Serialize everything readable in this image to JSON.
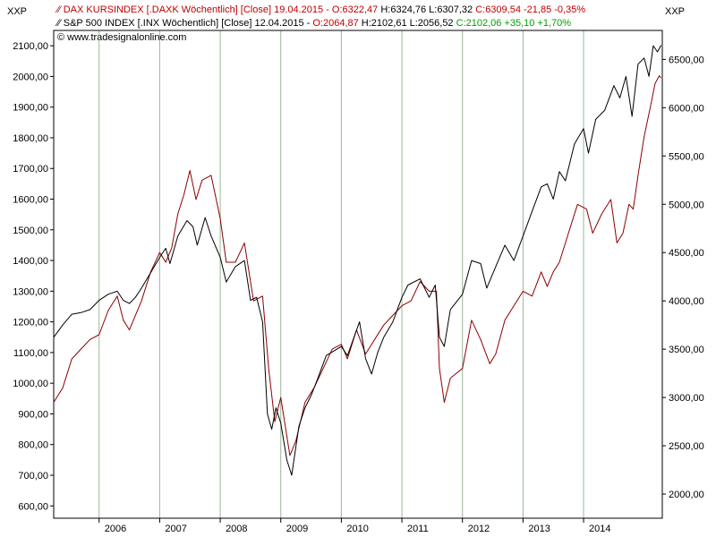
{
  "chart_data": {
    "type": "line",
    "corner_labels": {
      "left": "XXP",
      "right": "XXP"
    },
    "legend": {
      "dax": {
        "name": "DAX KURSINDEX [.DAXK  Wöchentlich] [Close] 19.04.2015",
        "open": "O:6322,47",
        "hl": "H:6324,76 L:6307,32",
        "close": "C:6309,54 -21,85 -0,35%"
      },
      "sp": {
        "name": "S&P 500 INDEX [.INX  Wöchentlich] [Close] 12.04.2015",
        "open": "O:2064,87",
        "hl": "H:2102,61 L:2056,52",
        "close": "C:2102,06 +35,10 +1,70%"
      },
      "copyright": "© www.tradesignalonline.com"
    },
    "x_axis": {
      "ticks": [
        "2006",
        "2007",
        "2008",
        "2009",
        "2010",
        "2011",
        "2012",
        "2013",
        "2014"
      ],
      "range": [
        2005.25,
        2015.3
      ]
    },
    "left_axis": {
      "series": "S&P 500",
      "range": [
        560,
        2150
      ],
      "ticks": [
        "600,00",
        "700,00",
        "800,00",
        "900,00",
        "1000,00",
        "1100,00",
        "1200,00",
        "1300,00",
        "1400,00",
        "1500,00",
        "1600,00",
        "1700,00",
        "1800,00",
        "1900,00",
        "2000,00",
        "2100,00"
      ]
    },
    "right_axis": {
      "series": "DAX",
      "range": [
        1750,
        6800
      ],
      "ticks": [
        "2000,00",
        "2500,00",
        "3000,00",
        "3500,00",
        "4000,00",
        "4500,00",
        "5000,00",
        "5500,00",
        "6000,00",
        "6500,00"
      ]
    },
    "grid": "vertical lines at year ticks",
    "series": [
      {
        "name": "S&P 500 INDEX",
        "color": "#000000",
        "axis": "left",
        "points": [
          [
            2005.25,
            1150
          ],
          [
            2005.4,
            1190
          ],
          [
            2005.55,
            1225
          ],
          [
            2005.7,
            1230
          ],
          [
            2005.85,
            1240
          ],
          [
            2006.0,
            1270
          ],
          [
            2006.15,
            1290
          ],
          [
            2006.3,
            1300
          ],
          [
            2006.4,
            1270
          ],
          [
            2006.5,
            1260
          ],
          [
            2006.6,
            1280
          ],
          [
            2006.7,
            1310
          ],
          [
            2006.85,
            1360
          ],
          [
            2007.0,
            1410
          ],
          [
            2007.1,
            1440
          ],
          [
            2007.17,
            1390
          ],
          [
            2007.3,
            1480
          ],
          [
            2007.45,
            1530
          ],
          [
            2007.55,
            1510
          ],
          [
            2007.62,
            1450
          ],
          [
            2007.75,
            1540
          ],
          [
            2007.85,
            1480
          ],
          [
            2008.0,
            1410
          ],
          [
            2008.1,
            1330
          ],
          [
            2008.25,
            1380
          ],
          [
            2008.4,
            1400
          ],
          [
            2008.5,
            1270
          ],
          [
            2008.6,
            1280
          ],
          [
            2008.7,
            1200
          ],
          [
            2008.78,
            900
          ],
          [
            2008.85,
            850
          ],
          [
            2008.92,
            920
          ],
          [
            2009.0,
            870
          ],
          [
            2009.1,
            750
          ],
          [
            2009.18,
            700
          ],
          [
            2009.3,
            860
          ],
          [
            2009.4,
            920
          ],
          [
            2009.5,
            960
          ],
          [
            2009.6,
            1010
          ],
          [
            2009.75,
            1090
          ],
          [
            2010.0,
            1120
          ],
          [
            2010.1,
            1090
          ],
          [
            2010.3,
            1200
          ],
          [
            2010.4,
            1080
          ],
          [
            2010.5,
            1030
          ],
          [
            2010.6,
            1100
          ],
          [
            2010.7,
            1150
          ],
          [
            2010.85,
            1200
          ],
          [
            2011.0,
            1280
          ],
          [
            2011.1,
            1320
          ],
          [
            2011.3,
            1340
          ],
          [
            2011.45,
            1280
          ],
          [
            2011.55,
            1320
          ],
          [
            2011.62,
            1150
          ],
          [
            2011.7,
            1120
          ],
          [
            2011.8,
            1240
          ],
          [
            2012.0,
            1290
          ],
          [
            2012.15,
            1400
          ],
          [
            2012.3,
            1390
          ],
          [
            2012.4,
            1310
          ],
          [
            2012.55,
            1380
          ],
          [
            2012.7,
            1450
          ],
          [
            2012.85,
            1400
          ],
          [
            2013.0,
            1480
          ],
          [
            2013.15,
            1560
          ],
          [
            2013.3,
            1640
          ],
          [
            2013.4,
            1650
          ],
          [
            2013.5,
            1600
          ],
          [
            2013.6,
            1690
          ],
          [
            2013.7,
            1660
          ],
          [
            2013.85,
            1780
          ],
          [
            2014.0,
            1830
          ],
          [
            2014.08,
            1750
          ],
          [
            2014.2,
            1860
          ],
          [
            2014.35,
            1890
          ],
          [
            2014.5,
            1970
          ],
          [
            2014.6,
            1930
          ],
          [
            2014.7,
            2000
          ],
          [
            2014.8,
            1870
          ],
          [
            2014.9,
            2040
          ],
          [
            2015.0,
            2060
          ],
          [
            2015.08,
            2000
          ],
          [
            2015.15,
            2100
          ],
          [
            2015.22,
            2080
          ],
          [
            2015.28,
            2102
          ]
        ]
      },
      {
        "name": "DAX KURSINDEX",
        "color": "#8b0000",
        "axis": "right",
        "points": [
          [
            2005.25,
            2950
          ],
          [
            2005.4,
            3100
          ],
          [
            2005.55,
            3400
          ],
          [
            2005.7,
            3500
          ],
          [
            2005.85,
            3600
          ],
          [
            2006.0,
            3650
          ],
          [
            2006.15,
            3900
          ],
          [
            2006.3,
            4050
          ],
          [
            2006.4,
            3800
          ],
          [
            2006.5,
            3700
          ],
          [
            2006.6,
            3850
          ],
          [
            2006.7,
            4000
          ],
          [
            2006.85,
            4300
          ],
          [
            2007.0,
            4500
          ],
          [
            2007.1,
            4400
          ],
          [
            2007.2,
            4550
          ],
          [
            2007.3,
            4900
          ],
          [
            2007.4,
            5100
          ],
          [
            2007.5,
            5350
          ],
          [
            2007.6,
            5050
          ],
          [
            2007.7,
            5250
          ],
          [
            2007.85,
            5300
          ],
          [
            2008.0,
            4850
          ],
          [
            2008.1,
            4400
          ],
          [
            2008.25,
            4400
          ],
          [
            2008.4,
            4600
          ],
          [
            2008.55,
            4000
          ],
          [
            2008.7,
            4050
          ],
          [
            2008.8,
            3300
          ],
          [
            2008.9,
            2750
          ],
          [
            2009.0,
            3000
          ],
          [
            2009.15,
            2400
          ],
          [
            2009.25,
            2550
          ],
          [
            2009.4,
            2950
          ],
          [
            2009.55,
            3100
          ],
          [
            2009.7,
            3300
          ],
          [
            2009.85,
            3500
          ],
          [
            2010.0,
            3550
          ],
          [
            2010.1,
            3400
          ],
          [
            2010.25,
            3700
          ],
          [
            2010.4,
            3450
          ],
          [
            2010.55,
            3600
          ],
          [
            2010.7,
            3750
          ],
          [
            2010.85,
            3850
          ],
          [
            2011.0,
            3950
          ],
          [
            2011.15,
            4000
          ],
          [
            2011.3,
            4200
          ],
          [
            2011.45,
            4100
          ],
          [
            2011.57,
            4100
          ],
          [
            2011.62,
            3300
          ],
          [
            2011.7,
            2950
          ],
          [
            2011.8,
            3200
          ],
          [
            2012.0,
            3300
          ],
          [
            2012.15,
            3800
          ],
          [
            2012.3,
            3600
          ],
          [
            2012.45,
            3350
          ],
          [
            2012.55,
            3450
          ],
          [
            2012.7,
            3800
          ],
          [
            2012.85,
            3950
          ],
          [
            2013.0,
            4100
          ],
          [
            2013.15,
            4050
          ],
          [
            2013.3,
            4300
          ],
          [
            2013.4,
            4150
          ],
          [
            2013.5,
            4300
          ],
          [
            2013.6,
            4400
          ],
          [
            2013.75,
            4700
          ],
          [
            2013.9,
            5000
          ],
          [
            2014.05,
            4950
          ],
          [
            2014.15,
            4700
          ],
          [
            2014.3,
            4900
          ],
          [
            2014.45,
            5050
          ],
          [
            2014.55,
            4600
          ],
          [
            2014.65,
            4700
          ],
          [
            2014.75,
            5000
          ],
          [
            2014.82,
            4950
          ],
          [
            2014.9,
            5300
          ],
          [
            2015.0,
            5700
          ],
          [
            2015.1,
            6000
          ],
          [
            2015.18,
            6250
          ],
          [
            2015.25,
            6330
          ],
          [
            2015.28,
            6310
          ]
        ]
      }
    ]
  },
  "colors": {
    "dax": "#8b0000",
    "sp": "#000000",
    "green": "#00a000",
    "red_text": "#c00000",
    "grid": "#98b898"
  }
}
